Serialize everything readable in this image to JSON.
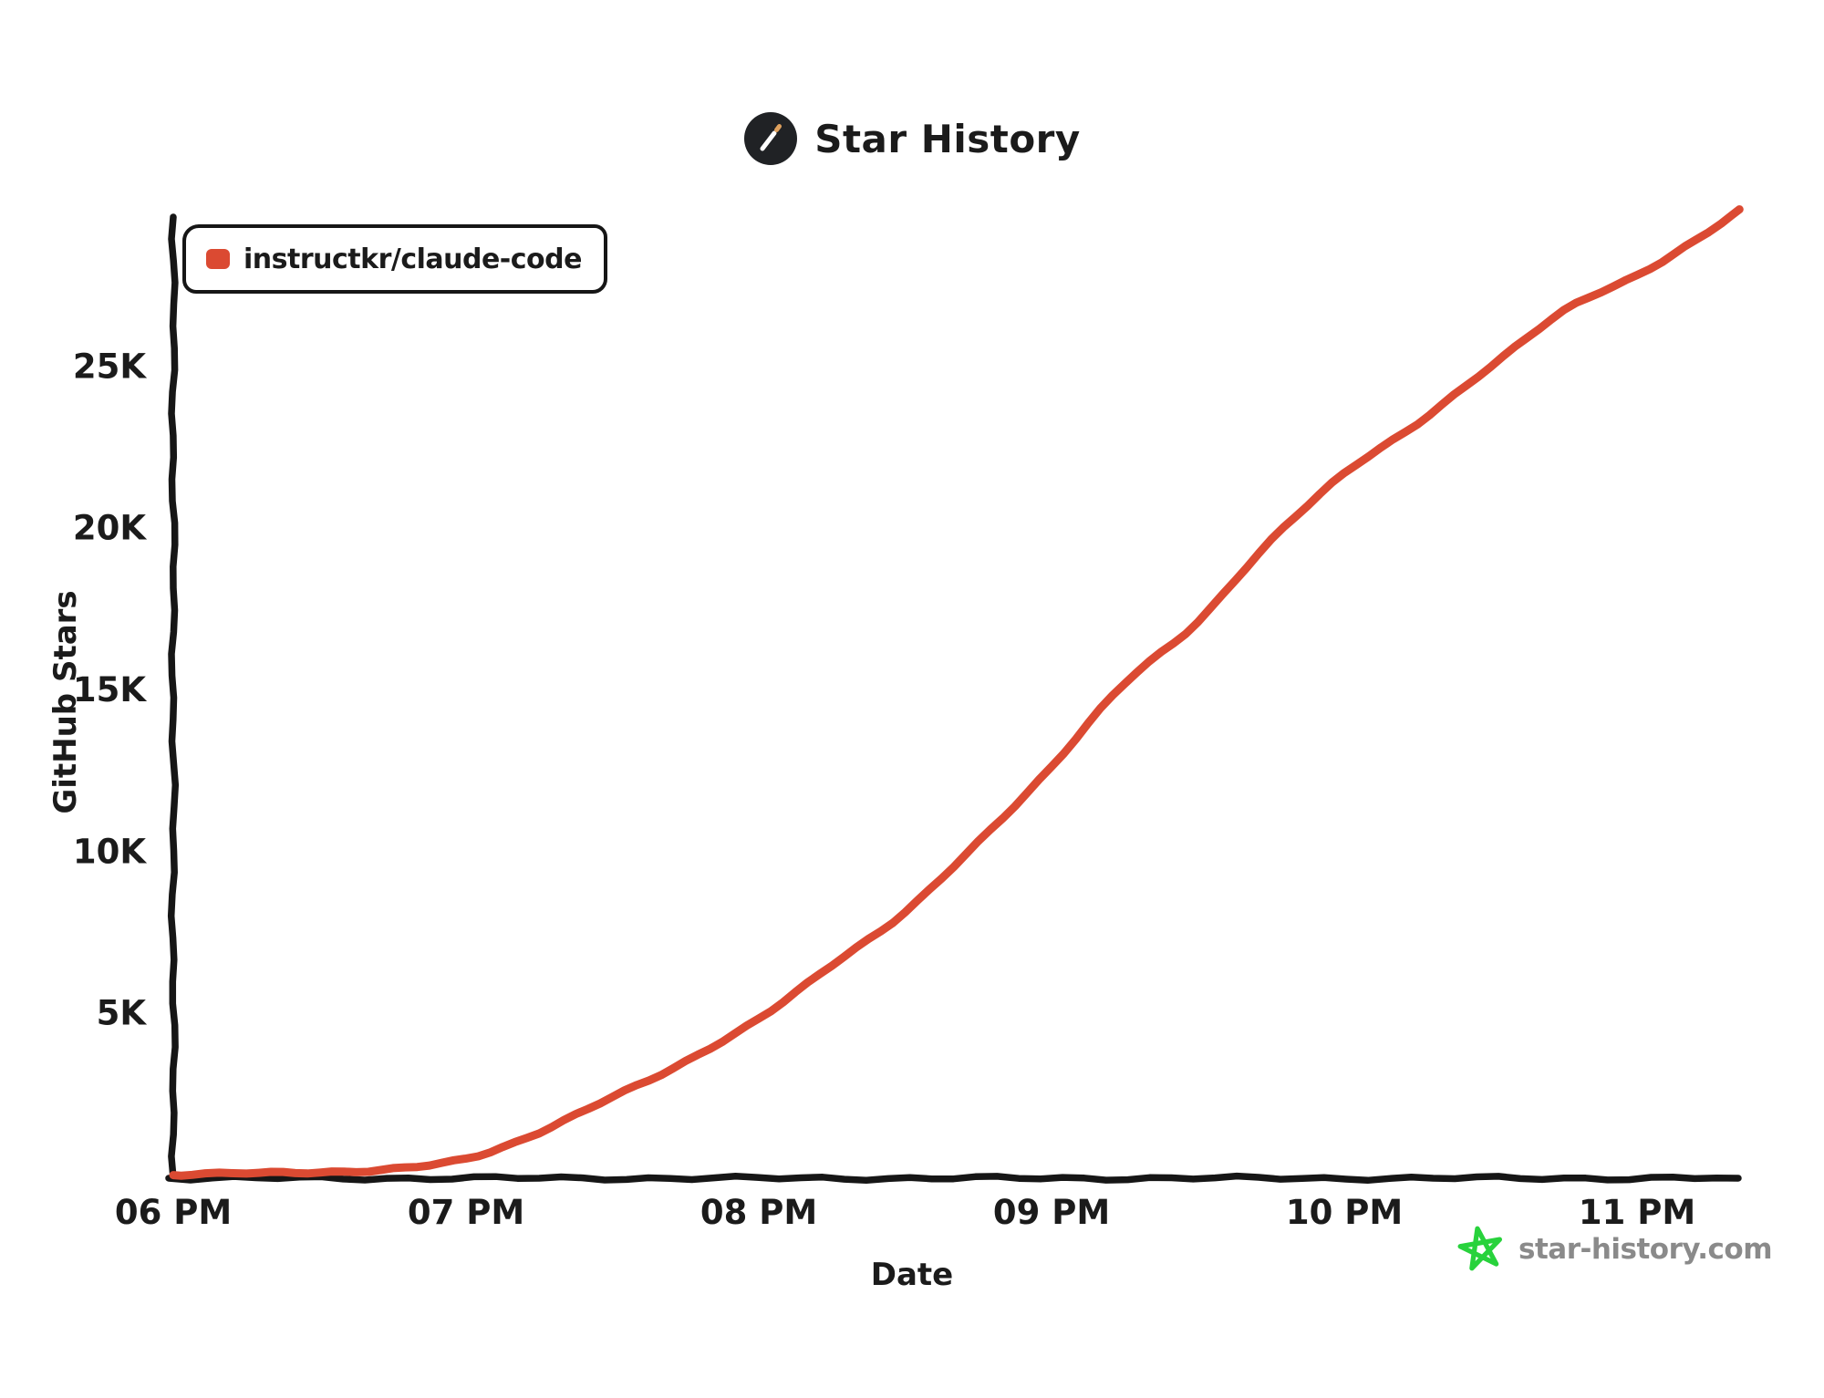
{
  "header": {
    "title": "Star History",
    "logo_icon": "wand-icon",
    "logo_bg_color": "#202225",
    "logo_wand_color": "#ffffff",
    "logo_wand_tip_color": "#dfa15e"
  },
  "legend": {
    "items": [
      {
        "label": "instructkr/claude-code",
        "color": "#db4a32",
        "swatch_icon": "series-color-swatch"
      }
    ]
  },
  "watermark": {
    "text": "star-history.com",
    "star_icon": "green-doodle-star-icon",
    "star_color": "#28d23c",
    "text_color": "#8a8a8a"
  },
  "colors": {
    "axis": "#161616",
    "text": "#1b1b1b",
    "series_red": "#db4a32",
    "background": "#ffffff"
  },
  "chart_data": {
    "type": "line",
    "style": "xkcd-hand-drawn",
    "title": "Star History",
    "xlabel": "Date",
    "ylabel": "GitHub Stars",
    "grid": false,
    "legend_position": "top-left",
    "ylim": [
      0,
      30000
    ],
    "x_range_hours": [
      0,
      5.35
    ],
    "x_ticks": [
      {
        "label": "06 PM",
        "hours": 0
      },
      {
        "label": "07 PM",
        "hours": 1
      },
      {
        "label": "08 PM",
        "hours": 2
      },
      {
        "label": "09 PM",
        "hours": 3
      },
      {
        "label": "10 PM",
        "hours": 4
      },
      {
        "label": "11 PM",
        "hours": 5
      }
    ],
    "y_ticks": [
      {
        "label": "5K",
        "value": 5000
      },
      {
        "label": "10K",
        "value": 10000
      },
      {
        "label": "15K",
        "value": 15000
      },
      {
        "label": "20K",
        "value": 20000
      },
      {
        "label": "25K",
        "value": 25000
      }
    ],
    "series": [
      {
        "name": "instructkr/claude-code",
        "color": "#db4a32",
        "points": [
          {
            "time": "06:00 PM",
            "hours_from_start": 0.0,
            "stars": 0
          },
          {
            "time": "06:15 PM",
            "hours_from_start": 0.25,
            "stars": 40
          },
          {
            "time": "06:30 PM",
            "hours_from_start": 0.5,
            "stars": 80
          },
          {
            "time": "06:45 PM",
            "hours_from_start": 0.75,
            "stars": 160
          },
          {
            "time": "07:00 PM",
            "hours_from_start": 1.0,
            "stars": 500
          },
          {
            "time": "07:15 PM",
            "hours_from_start": 1.25,
            "stars": 1300
          },
          {
            "time": "07:30 PM",
            "hours_from_start": 1.5,
            "stars": 2400
          },
          {
            "time": "07:45 PM",
            "hours_from_start": 1.75,
            "stars": 3500
          },
          {
            "time": "08:00 PM",
            "hours_from_start": 2.0,
            "stars": 4800
          },
          {
            "time": "08:15 PM",
            "hours_from_start": 2.25,
            "stars": 6500
          },
          {
            "time": "08:30 PM",
            "hours_from_start": 2.5,
            "stars": 8100
          },
          {
            "time": "08:45 PM",
            "hours_from_start": 2.75,
            "stars": 10300
          },
          {
            "time": "09:00 PM",
            "hours_from_start": 3.0,
            "stars": 12600
          },
          {
            "time": "09:15 PM",
            "hours_from_start": 3.25,
            "stars": 15200
          },
          {
            "time": "09:30 PM",
            "hours_from_start": 3.5,
            "stars": 17100
          },
          {
            "time": "09:45 PM",
            "hours_from_start": 3.75,
            "stars": 19600
          },
          {
            "time": "10:00 PM",
            "hours_from_start": 4.0,
            "stars": 21700
          },
          {
            "time": "10:15 PM",
            "hours_from_start": 4.25,
            "stars": 23200
          },
          {
            "time": "10:30 PM",
            "hours_from_start": 4.5,
            "stars": 25000
          },
          {
            "time": "10:45 PM",
            "hours_from_start": 4.75,
            "stars": 26700
          },
          {
            "time": "11:00 PM",
            "hours_from_start": 5.0,
            "stars": 27800
          },
          {
            "time": "11:12 PM",
            "hours_from_start": 5.2,
            "stars": 28900
          },
          {
            "time": "11:21 PM",
            "hours_from_start": 5.35,
            "stars": 29800
          }
        ]
      }
    ]
  }
}
